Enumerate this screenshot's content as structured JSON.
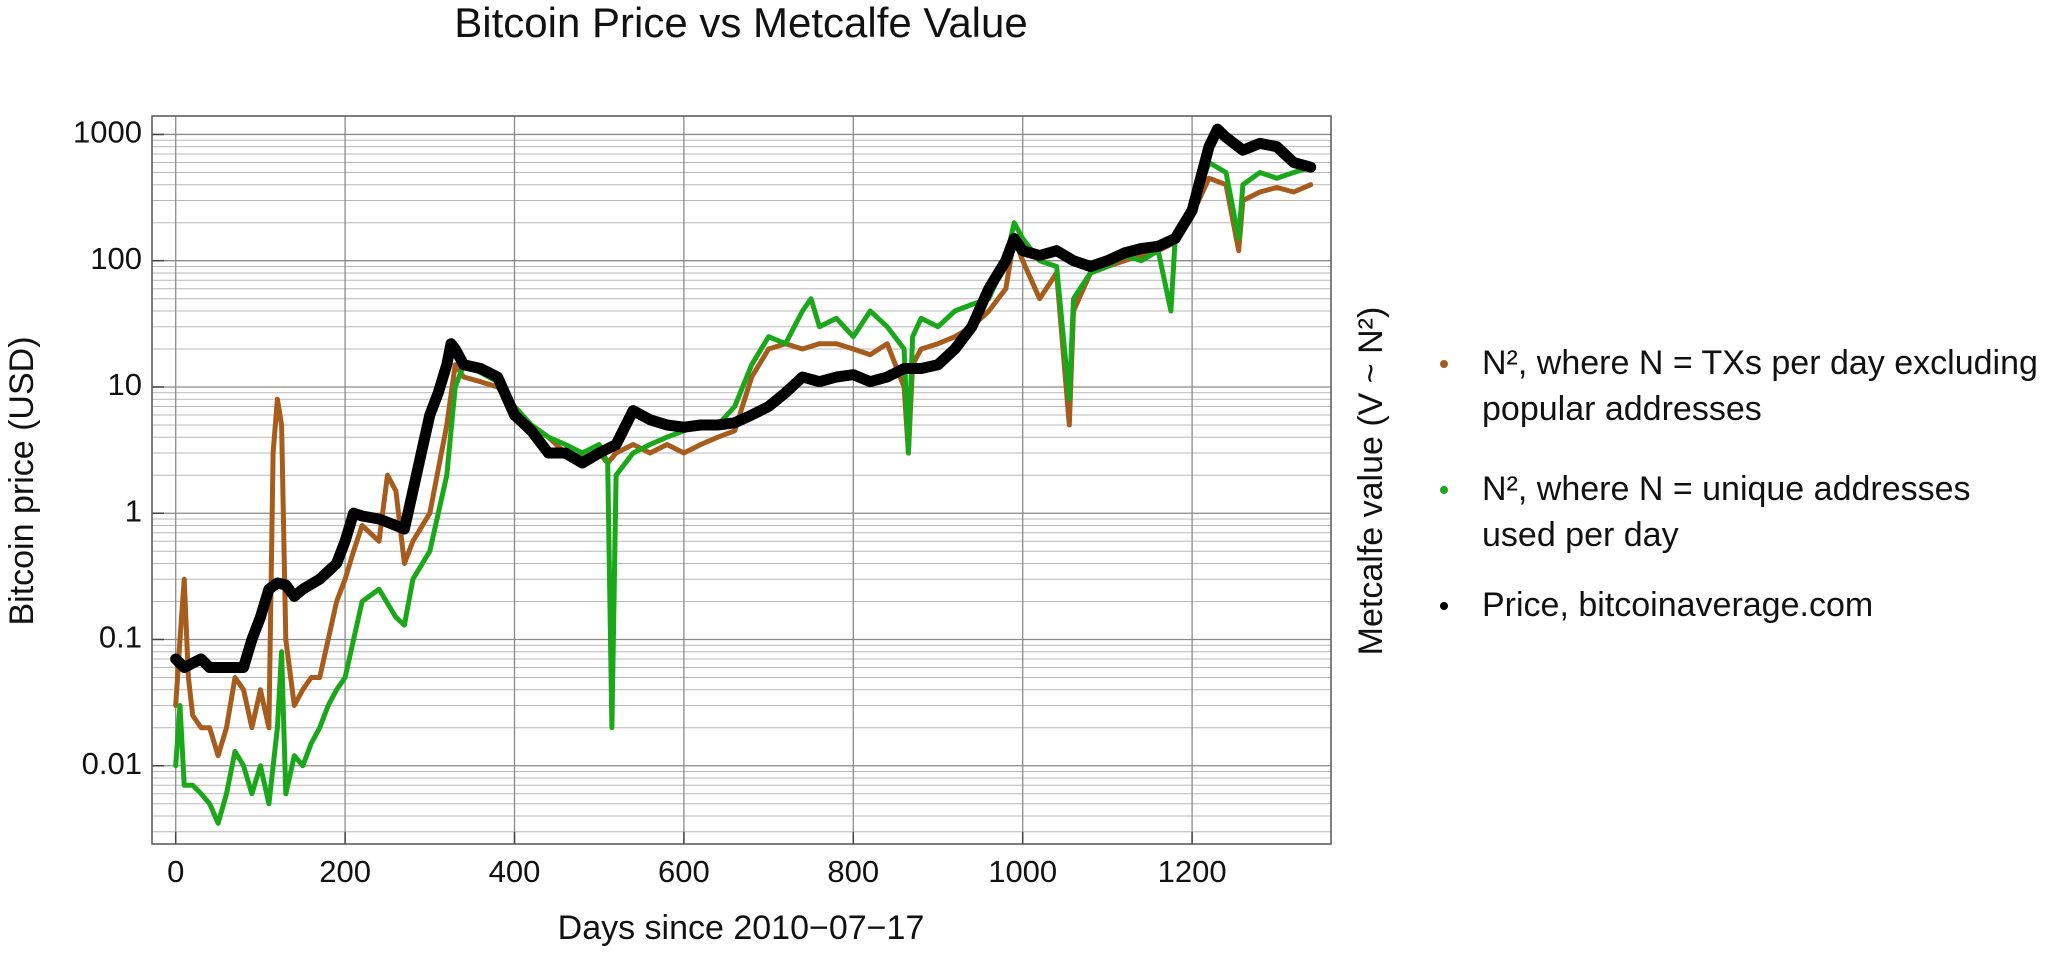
{
  "chart_data": {
    "type": "line",
    "title": "Bitcoin Price vs Metcalfe Value",
    "x_label": "Days since 2010−07−17",
    "y_label": "Bitcoin price (USD)",
    "y2_label": "Metcalfe value (V ~ N²)",
    "ylog": true,
    "grid": true,
    "legend": "right",
    "xlim": [
      -28,
      1364
    ],
    "ylim": [
      0.0024,
      1400
    ],
    "xticks": [
      0,
      200,
      400,
      600,
      800,
      1000,
      1200
    ],
    "yticks": [
      0.01,
      0.1,
      1,
      10,
      100,
      1000
    ],
    "y_minor_ticks": [
      0.003,
      0.004,
      0.005,
      0.006,
      0.007,
      0.008,
      0.009,
      0.02,
      0.03,
      0.04,
      0.05,
      0.06,
      0.07,
      0.08,
      0.09,
      0.2,
      0.3,
      0.4,
      0.5,
      0.6,
      0.7,
      0.8,
      0.9,
      2,
      3,
      4,
      5,
      6,
      7,
      8,
      9,
      20,
      30,
      40,
      50,
      60,
      70,
      80,
      90,
      200,
      300,
      400,
      500,
      600,
      700,
      800,
      900
    ],
    "series": [
      {
        "name": "N², where N = TXs per day excluding popular addresses",
        "color": "#a65c1c",
        "width": 5,
        "x": [
          0,
          5,
          10,
          15,
          20,
          30,
          40,
          50,
          60,
          70,
          80,
          90,
          100,
          110,
          115,
          120,
          125,
          130,
          140,
          150,
          160,
          170,
          180,
          190,
          200,
          210,
          220,
          240,
          250,
          260,
          270,
          280,
          300,
          320,
          330,
          340,
          360,
          380,
          400,
          420,
          440,
          460,
          480,
          500,
          510,
          520,
          540,
          560,
          580,
          600,
          620,
          640,
          660,
          680,
          700,
          720,
          740,
          760,
          780,
          800,
          820,
          840,
          860,
          865,
          870,
          880,
          900,
          920,
          940,
          960,
          980,
          990,
          1000,
          1020,
          1040,
          1055,
          1060,
          1080,
          1100,
          1120,
          1140,
          1160,
          1180,
          1200,
          1220,
          1240,
          1255,
          1260,
          1280,
          1300,
          1320,
          1340
        ],
        "values": [
          0.03,
          0.1,
          0.3,
          0.05,
          0.025,
          0.02,
          0.02,
          0.012,
          0.02,
          0.05,
          0.04,
          0.02,
          0.04,
          0.02,
          3,
          8,
          5,
          0.1,
          0.03,
          0.04,
          0.05,
          0.05,
          0.1,
          0.2,
          0.3,
          0.5,
          0.8,
          0.6,
          2,
          1.5,
          0.4,
          0.6,
          1,
          5,
          15,
          12,
          11,
          10,
          7,
          5,
          4,
          3,
          2.8,
          3,
          2.5,
          3,
          3.5,
          3,
          3.5,
          3,
          3.5,
          4,
          4.5,
          12,
          20,
          22,
          20,
          22,
          22,
          20,
          18,
          22,
          10,
          3,
          15,
          20,
          22,
          25,
          30,
          40,
          60,
          150,
          100,
          50,
          80,
          5,
          40,
          80,
          90,
          100,
          110,
          120,
          140,
          230,
          450,
          400,
          120,
          300,
          350,
          380,
          350,
          400
        ]
      },
      {
        "name": "N², where N = unique addresses used per day",
        "color": "#1aa81a",
        "width": 5,
        "x": [
          0,
          5,
          10,
          20,
          30,
          40,
          50,
          60,
          70,
          80,
          90,
          100,
          110,
          120,
          125,
          130,
          140,
          150,
          160,
          170,
          180,
          190,
          200,
          210,
          220,
          240,
          260,
          270,
          280,
          300,
          320,
          330,
          340,
          360,
          380,
          400,
          420,
          440,
          460,
          480,
          500,
          510,
          515,
          520,
          540,
          560,
          580,
          600,
          620,
          640,
          660,
          680,
          700,
          720,
          740,
          750,
          760,
          780,
          800,
          820,
          840,
          860,
          865,
          870,
          880,
          900,
          920,
          940,
          960,
          980,
          990,
          1000,
          1020,
          1040,
          1055,
          1060,
          1080,
          1100,
          1120,
          1140,
          1160,
          1175,
          1180,
          1200,
          1220,
          1240,
          1255,
          1260,
          1280,
          1300,
          1320,
          1340
        ],
        "values": [
          0.01,
          0.03,
          0.007,
          0.007,
          0.006,
          0.005,
          0.0035,
          0.006,
          0.013,
          0.01,
          0.006,
          0.01,
          0.005,
          0.02,
          0.08,
          0.006,
          0.012,
          0.01,
          0.015,
          0.02,
          0.03,
          0.04,
          0.05,
          0.1,
          0.2,
          0.25,
          0.15,
          0.13,
          0.3,
          0.5,
          2,
          10,
          15,
          13,
          11,
          7,
          5,
          4,
          3.5,
          3,
          3.5,
          2.5,
          0.02,
          2,
          3,
          3.5,
          4,
          4.5,
          5,
          5,
          7,
          15,
          25,
          22,
          40,
          50,
          30,
          35,
          25,
          40,
          30,
          20,
          3,
          25,
          35,
          30,
          40,
          45,
          50,
          100,
          200,
          150,
          100,
          90,
          8,
          50,
          80,
          90,
          110,
          100,
          120,
          40,
          150,
          250,
          600,
          500,
          150,
          400,
          500,
          450,
          500,
          550
        ]
      },
      {
        "name": "Price, bitcoinaverage.com",
        "color": "#000000",
        "width": 11,
        "x": [
          0,
          10,
          20,
          30,
          40,
          60,
          80,
          90,
          100,
          110,
          120,
          130,
          140,
          150,
          170,
          190,
          200,
          210,
          220,
          240,
          260,
          270,
          280,
          290,
          300,
          310,
          320,
          325,
          330,
          340,
          360,
          380,
          400,
          420,
          440,
          460,
          480,
          500,
          520,
          540,
          560,
          580,
          600,
          620,
          640,
          660,
          680,
          700,
          720,
          740,
          760,
          780,
          800,
          820,
          840,
          860,
          880,
          900,
          920,
          940,
          960,
          980,
          990,
          1000,
          1020,
          1040,
          1060,
          1080,
          1100,
          1120,
          1140,
          1160,
          1180,
          1200,
          1220,
          1230,
          1240,
          1260,
          1280,
          1300,
          1320,
          1340
        ],
        "values": [
          0.07,
          0.06,
          0.065,
          0.07,
          0.06,
          0.06,
          0.06,
          0.1,
          0.15,
          0.25,
          0.28,
          0.27,
          0.22,
          0.25,
          0.3,
          0.4,
          0.6,
          1.0,
          0.95,
          0.9,
          0.8,
          0.75,
          1.5,
          3,
          6,
          9,
          15,
          22,
          20,
          15,
          14,
          12,
          6,
          4.5,
          3,
          3,
          2.5,
          3,
          3.5,
          6.5,
          5.5,
          5,
          4.8,
          5,
          5,
          5.2,
          6,
          7,
          9,
          12,
          11,
          12,
          12.5,
          11,
          12,
          14,
          14,
          15,
          20,
          30,
          60,
          100,
          150,
          120,
          110,
          120,
          100,
          90,
          100,
          115,
          125,
          130,
          150,
          250,
          800,
          1100,
          950,
          750,
          850,
          800,
          600,
          550
        ]
      }
    ]
  }
}
